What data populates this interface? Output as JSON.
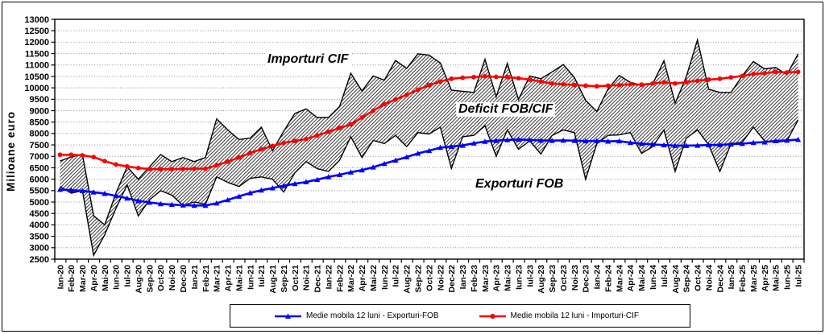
{
  "page": {
    "background": "#FFFFFF",
    "border_color": "#000000"
  },
  "chart_data": {
    "type": "line",
    "title": "",
    "xlabel": "",
    "ylabel": "Milioane  euro",
    "ylim": [
      2500,
      13000
    ],
    "ytick_step": 500,
    "grid": "dotted-horizontal",
    "legend_position": "bottom",
    "categories": [
      "Ian-20",
      "Feb-20",
      "Mar-20",
      "Apr-20",
      "Mai-20",
      "Iun-20",
      "Iul-20",
      "Aug-20",
      "Sep-20",
      "Oct-20",
      "Noi-20",
      "Dec-20",
      "Ian-21",
      "Feb-21",
      "Mar-21",
      "Apr-21",
      "Mai-21",
      "Iun-21",
      "Iul-21",
      "Aug-21",
      "Sep-21",
      "Oct-21",
      "Noi-21",
      "Dec-21",
      "Ian-22",
      "Feb-22",
      "Mar-22",
      "Apr-22",
      "Mai-22",
      "Iun-22",
      "Iul-22",
      "Aug-22",
      "Sep-22",
      "Oct-22",
      "Noi-22",
      "Dec-22",
      "Ian-23",
      "Feb-23",
      "Mar-23",
      "Apr-23",
      "Mai-23",
      "Iun-23",
      "Iul-23",
      "Aug-23",
      "Sep-23",
      "Oct-23",
      "Noi-23",
      "Dec-23",
      "Ian-24",
      "Feb-24",
      "Mar-24",
      "Apr-24",
      "Mai-24",
      "Iun-24",
      "Iul-24",
      "Aug-24",
      "Sep-24",
      "Oct-24",
      "Noi-24",
      "Dec-24",
      "Ian-25",
      "Feb-25",
      "Mar-25",
      "Apr-25",
      "Mai-25",
      "Iun-25",
      "Iul-25"
    ],
    "series": [
      {
        "name": "Importuri CIF (lunar)",
        "role": "band_upper",
        "color": "#000000",
        "values": [
          6800,
          6970,
          7090,
          4400,
          4000,
          5390,
          6540,
          6000,
          6540,
          7080,
          6770,
          6950,
          6770,
          6950,
          8640,
          8160,
          7740,
          7800,
          8280,
          7250,
          8100,
          8880,
          9080,
          8700,
          8700,
          9180,
          10640,
          9860,
          10520,
          10340,
          11200,
          10850,
          11490,
          11430,
          11090,
          9900,
          9850,
          9800,
          11250,
          9610,
          11070,
          9490,
          10520,
          10400,
          10700,
          11020,
          10450,
          9450,
          8965,
          9950,
          10540,
          10240,
          10115,
          10175,
          11185,
          9330,
          10480,
          12100,
          9940,
          9800,
          9800,
          10520,
          11150,
          10830,
          10890,
          10580,
          11490
        ]
      },
      {
        "name": "Exporturi FOB (lunar)",
        "role": "band_lower",
        "color": "#000000",
        "values": [
          5680,
          5390,
          5500,
          2670,
          3570,
          4720,
          5750,
          4390,
          5100,
          5500,
          5300,
          4850,
          5000,
          4900,
          6100,
          5860,
          5680,
          6040,
          6100,
          6000,
          5440,
          6280,
          6770,
          6460,
          6340,
          6830,
          7860,
          6950,
          7700,
          7560,
          7920,
          7430,
          8040,
          7980,
          8280,
          6470,
          7860,
          7920,
          8340,
          7000,
          8160,
          7310,
          7680,
          7100,
          7920,
          8160,
          8040,
          6000,
          7560,
          7920,
          7940,
          8040,
          7130,
          7430,
          8160,
          6345,
          7795,
          8160,
          7500,
          6340,
          7555,
          7615,
          8280,
          7675,
          7615,
          7675,
          8600
        ]
      },
      {
        "name": "Medie mobila 12 luni - Importuri-CIF",
        "role": "moving_average",
        "color": "#FF0000",
        "marker": "circle",
        "values": [
          7070,
          7070,
          7045,
          6970,
          6790,
          6645,
          6560,
          6490,
          6450,
          6440,
          6440,
          6450,
          6460,
          6460,
          6610,
          6770,
          6950,
          7150,
          7310,
          7455,
          7590,
          7675,
          7760,
          7915,
          8075,
          8245,
          8400,
          8700,
          9000,
          9285,
          9490,
          9695,
          9915,
          10120,
          10275,
          10395,
          10445,
          10470,
          10505,
          10480,
          10470,
          10420,
          10360,
          10275,
          10190,
          10155,
          10120,
          10095,
          10070,
          10095,
          10120,
          10155,
          10140,
          10190,
          10240,
          10190,
          10250,
          10310,
          10360,
          10395,
          10460,
          10520,
          10605,
          10640,
          10700,
          10675,
          10700
        ]
      },
      {
        "name": "Medie mobila 12 luni - Exporturi-FOB",
        "role": "moving_average",
        "color": "#0000FF",
        "marker": "triangle",
        "values": [
          5550,
          5520,
          5490,
          5430,
          5370,
          5270,
          5165,
          5055,
          4985,
          4920,
          4890,
          4860,
          4850,
          4850,
          4950,
          5095,
          5250,
          5400,
          5520,
          5615,
          5715,
          5800,
          5880,
          5980,
          6100,
          6195,
          6305,
          6400,
          6525,
          6680,
          6825,
          6970,
          7130,
          7250,
          7385,
          7430,
          7480,
          7575,
          7650,
          7690,
          7720,
          7740,
          7720,
          7700,
          7690,
          7700,
          7690,
          7670,
          7675,
          7660,
          7670,
          7600,
          7560,
          7520,
          7495,
          7470,
          7470,
          7480,
          7495,
          7505,
          7530,
          7555,
          7600,
          7625,
          7675,
          7700,
          7735
        ]
      }
    ],
    "band_fill": "diagonal-hatch",
    "annotations": [
      {
        "text": "Importuri CIF"
      },
      {
        "text": "Deficit FOB/CIF"
      },
      {
        "text": "Exporturi FOB"
      }
    ],
    "legend": {
      "entries": [
        {
          "label": "Medie mobila 12 luni - Exporturi-FOB",
          "color": "#0000FF",
          "marker": "triangle"
        },
        {
          "label": "Medie mobila 12 luni - Importuri-CIF",
          "color": "#FF0000",
          "marker": "circle"
        }
      ]
    }
  }
}
